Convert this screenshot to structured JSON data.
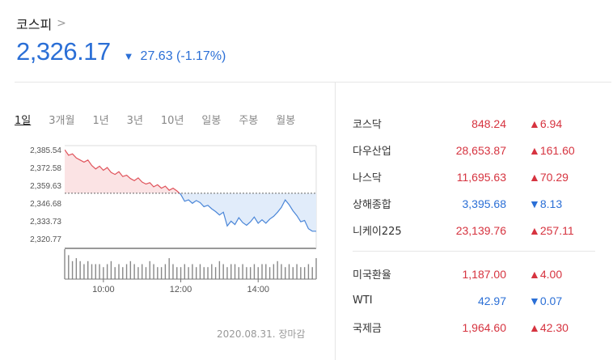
{
  "header": {
    "index_name": "코스피",
    "chevron": ">",
    "price": "2,326.17",
    "direction_icon": "▼",
    "change": "27.63 (-1.17%)"
  },
  "tabs": [
    "1일",
    "3개월",
    "1년",
    "3년",
    "10년",
    "일봉",
    "주봉",
    "월봉"
  ],
  "active_tab": 0,
  "chart_data": {
    "type": "line",
    "y_ticks": [
      "2,385.54",
      "2,372.58",
      "2,359.63",
      "2,346.68",
      "2,333.73",
      "2,320.77"
    ],
    "y_tick_values": [
      2385.54,
      2372.58,
      2359.63,
      2346.68,
      2333.73,
      2320.77
    ],
    "ylim": [
      2320.77,
      2385.54
    ],
    "x_ticks": [
      "10:00",
      "12:00",
      "14:00"
    ],
    "x_tick_values": [
      10,
      12,
      14
    ],
    "xlim": [
      9,
      15.5
    ],
    "baseline": 2353.8,
    "colors": {
      "above": "#e0545c",
      "below": "#4a86d8",
      "above_fill": "#fbe3e4",
      "below_fill": "#e1ecfa"
    },
    "x": [
      9.0,
      9.1,
      9.2,
      9.3,
      9.4,
      9.5,
      9.6,
      9.7,
      9.8,
      9.9,
      10.0,
      10.1,
      10.2,
      10.3,
      10.4,
      10.5,
      10.6,
      10.7,
      10.8,
      10.9,
      11.0,
      11.1,
      11.2,
      11.3,
      11.4,
      11.5,
      11.6,
      11.7,
      11.8,
      11.9,
      12.0,
      12.1,
      12.2,
      12.3,
      12.4,
      12.5,
      12.6,
      12.7,
      12.8,
      12.9,
      13.0,
      13.1,
      13.2,
      13.3,
      13.4,
      13.5,
      13.6,
      13.7,
      13.8,
      13.9,
      14.0,
      14.1,
      14.2,
      14.3,
      14.4,
      14.5,
      14.6,
      14.7,
      14.8,
      14.9,
      15.0,
      15.1,
      15.2,
      15.3,
      15.4,
      15.5
    ],
    "values": [
      2385.5,
      2381.5,
      2382.5,
      2379.5,
      2378.0,
      2376.5,
      2378.0,
      2374.0,
      2371.5,
      2373.5,
      2370.5,
      2372.5,
      2369.0,
      2367.5,
      2369.5,
      2366.0,
      2367.0,
      2364.5,
      2363.0,
      2365.0,
      2362.0,
      2360.5,
      2361.5,
      2358.5,
      2360.0,
      2357.5,
      2359.0,
      2356.0,
      2357.5,
      2355.5,
      2353.0,
      2348.0,
      2349.0,
      2346.5,
      2348.5,
      2347.0,
      2344.0,
      2345.0,
      2342.5,
      2340.5,
      2338.0,
      2340.0,
      2330.0,
      2333.5,
      2331.0,
      2336.0,
      2332.5,
      2330.5,
      2333.0,
      2336.5,
      2332.0,
      2334.5,
      2332.0,
      2335.0,
      2337.0,
      2340.0,
      2343.5,
      2349.0,
      2345.5,
      2341.0,
      2337.5,
      2333.0,
      2334.0,
      2328.0,
      2326.17,
      2326.17
    ],
    "volume": [
      10,
      8,
      6,
      7,
      6,
      5,
      6,
      5,
      5,
      5,
      4,
      5,
      6,
      4,
      5,
      4,
      5,
      6,
      5,
      4,
      5,
      4,
      6,
      5,
      4,
      4,
      5,
      7,
      5,
      4,
      4,
      5,
      4,
      5,
      4,
      5,
      4,
      4,
      5,
      4,
      6,
      5,
      4,
      5,
      5,
      4,
      5,
      4,
      4,
      5,
      4,
      5,
      5,
      4,
      5,
      6,
      5,
      4,
      5,
      4,
      5,
      4,
      4,
      5,
      4,
      7
    ]
  },
  "footer_note": "2020.08.31. 장마감",
  "markets": {
    "group1": [
      {
        "name": "코스닥",
        "value": "848.24",
        "dir": "up",
        "icon": "▲",
        "change": "6.94"
      },
      {
        "name": "다우산업",
        "value": "28,653.87",
        "dir": "up",
        "icon": "▲",
        "change": "161.60"
      },
      {
        "name": "나스닥",
        "value": "11,695.63",
        "dir": "up",
        "icon": "▲",
        "change": "70.29"
      },
      {
        "name": "상해종합",
        "value": "3,395.68",
        "dir": "down",
        "icon": "▼",
        "change": "8.13"
      },
      {
        "name": "니케이225",
        "value": "23,139.76",
        "dir": "up",
        "icon": "▲",
        "change": "257.11"
      }
    ],
    "group2": [
      {
        "name": "미국환율",
        "value": "1,187.00",
        "dir": "up",
        "icon": "▲",
        "change": "4.00"
      },
      {
        "name": "WTI",
        "value": "42.97",
        "dir": "down",
        "icon": "▼",
        "change": "0.07"
      },
      {
        "name": "국제금",
        "value": "1,964.60",
        "dir": "up",
        "icon": "▲",
        "change": "42.30"
      }
    ]
  }
}
